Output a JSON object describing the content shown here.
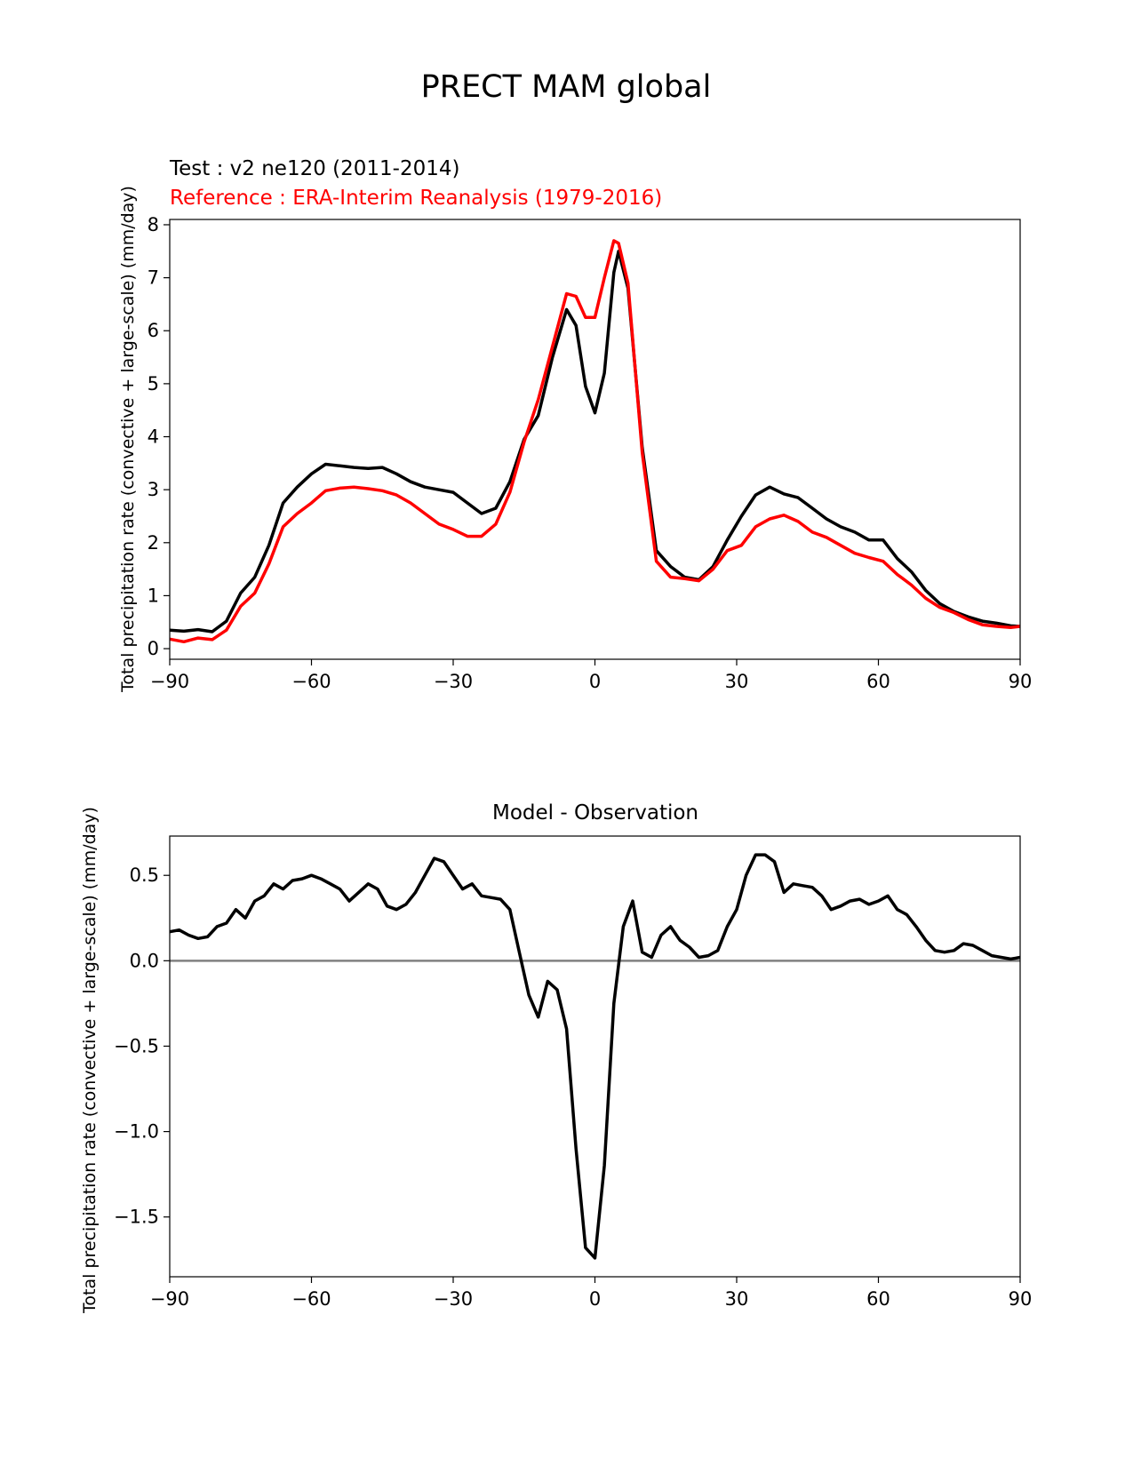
{
  "figure": {
    "title": "PRECT MAM global"
  },
  "chart_data": [
    {
      "type": "line",
      "test_label": "Test : v2 ne120 (2011-2014)",
      "reference_label": "Reference : ERA-Interim Reanalysis (1979-2016)",
      "xlabel": "",
      "ylabel": "Total precipitation rate (convective + large-scale) (mm/day)",
      "xlim": [
        -90,
        90
      ],
      "ylim": [
        -0.2,
        8.1
      ],
      "xticks": [
        -90,
        -60,
        -30,
        0,
        30,
        60,
        90
      ],
      "xtick_labels": [
        "−90",
        "−60",
        "−30",
        "0",
        "30",
        "60",
        "90"
      ],
      "yticks": [
        0,
        1,
        2,
        3,
        4,
        5,
        6,
        7,
        8
      ],
      "ytick_labels": [
        "0",
        "1",
        "2",
        "3",
        "4",
        "5",
        "6",
        "7",
        "8"
      ],
      "colors": {
        "test": "#000000",
        "reference": "#ff0000"
      },
      "series": [
        {
          "name": "Test",
          "x": [
            -90,
            -87,
            -84,
            -81,
            -78,
            -75,
            -72,
            -69,
            -66,
            -63,
            -60,
            -57,
            -54,
            -51,
            -48,
            -45,
            -42,
            -39,
            -36,
            -33,
            -30,
            -27,
            -24,
            -21,
            -18,
            -15,
            -12,
            -9,
            -6,
            -4,
            -2,
            0,
            2,
            4,
            5,
            7,
            10,
            13,
            16,
            19,
            22,
            25,
            28,
            31,
            34,
            37,
            40,
            43,
            46,
            49,
            52,
            55,
            58,
            61,
            64,
            67,
            70,
            73,
            76,
            79,
            82,
            85,
            88,
            90
          ],
          "values": [
            0.35,
            0.33,
            0.36,
            0.32,
            0.52,
            1.05,
            1.35,
            1.95,
            2.75,
            3.05,
            3.3,
            3.48,
            3.45,
            3.42,
            3.4,
            3.42,
            3.3,
            3.15,
            3.05,
            3.0,
            2.95,
            2.75,
            2.55,
            2.65,
            3.15,
            3.95,
            4.4,
            5.5,
            6.4,
            6.1,
            4.95,
            4.45,
            5.2,
            7.1,
            7.5,
            6.8,
            3.8,
            1.85,
            1.55,
            1.35,
            1.3,
            1.55,
            2.05,
            2.5,
            2.9,
            3.05,
            2.92,
            2.85,
            2.65,
            2.45,
            2.3,
            2.2,
            2.05,
            2.05,
            1.7,
            1.45,
            1.1,
            0.85,
            0.7,
            0.6,
            0.52,
            0.48,
            0.43,
            0.42
          ]
        },
        {
          "name": "Reference",
          "x": [
            -90,
            -87,
            -84,
            -81,
            -78,
            -75,
            -72,
            -69,
            -66,
            -63,
            -60,
            -57,
            -54,
            -51,
            -48,
            -45,
            -42,
            -39,
            -36,
            -33,
            -30,
            -27,
            -24,
            -21,
            -18,
            -15,
            -12,
            -9,
            -6,
            -4,
            -2,
            0,
            2,
            4,
            5,
            7,
            10,
            13,
            16,
            19,
            22,
            25,
            28,
            31,
            34,
            37,
            40,
            43,
            46,
            49,
            52,
            55,
            58,
            61,
            64,
            67,
            70,
            73,
            76,
            79,
            82,
            85,
            88,
            90
          ],
          "values": [
            0.18,
            0.13,
            0.2,
            0.17,
            0.35,
            0.8,
            1.05,
            1.6,
            2.3,
            2.55,
            2.75,
            2.98,
            3.03,
            3.05,
            3.02,
            2.98,
            2.9,
            2.75,
            2.55,
            2.35,
            2.25,
            2.12,
            2.12,
            2.35,
            2.95,
            3.9,
            4.7,
            5.7,
            6.7,
            6.65,
            6.25,
            6.25,
            7.0,
            7.7,
            7.65,
            6.9,
            3.7,
            1.65,
            1.35,
            1.32,
            1.28,
            1.5,
            1.85,
            1.95,
            2.3,
            2.45,
            2.52,
            2.4,
            2.2,
            2.1,
            1.95,
            1.8,
            1.72,
            1.65,
            1.4,
            1.2,
            0.95,
            0.78,
            0.68,
            0.55,
            0.45,
            0.42,
            0.4,
            0.42
          ]
        }
      ]
    },
    {
      "type": "line",
      "title": "Model - Observation",
      "xlabel": "",
      "ylabel": "Total precipitation rate (convective + large-scale) (mm/day)",
      "xlim": [
        -90,
        90
      ],
      "ylim": [
        -1.85,
        0.73
      ],
      "xticks": [
        -90,
        -60,
        -30,
        0,
        30,
        60,
        90
      ],
      "xtick_labels": [
        "−90",
        "−60",
        "−30",
        "0",
        "30",
        "60",
        "90"
      ],
      "yticks": [
        -1.5,
        -1.0,
        -0.5,
        0.0,
        0.5
      ],
      "ytick_labels": [
        "−1.5",
        "−1.0",
        "−0.5",
        "0.0",
        "0.5"
      ],
      "zero_line": 0,
      "colors": {
        "difference": "#000000",
        "zero_line": "#808080"
      },
      "series": [
        {
          "name": "Model - Observation",
          "x": [
            -90,
            -88,
            -86,
            -84,
            -82,
            -80,
            -78,
            -76,
            -74,
            -72,
            -70,
            -68,
            -66,
            -64,
            -62,
            -60,
            -58,
            -56,
            -54,
            -52,
            -50,
            -48,
            -46,
            -44,
            -42,
            -40,
            -38,
            -36,
            -34,
            -32,
            -30,
            -28,
            -26,
            -24,
            -22,
            -20,
            -18,
            -16,
            -14,
            -12,
            -10,
            -8,
            -6,
            -4,
            -2,
            0,
            2,
            4,
            6,
            8,
            10,
            12,
            14,
            16,
            18,
            20,
            22,
            24,
            26,
            28,
            30,
            32,
            34,
            36,
            38,
            40,
            42,
            44,
            46,
            48,
            50,
            52,
            54,
            56,
            58,
            60,
            62,
            64,
            66,
            68,
            70,
            72,
            74,
            76,
            78,
            80,
            82,
            84,
            86,
            88,
            90
          ],
          "values": [
            0.17,
            0.18,
            0.15,
            0.13,
            0.14,
            0.2,
            0.22,
            0.3,
            0.25,
            0.35,
            0.38,
            0.45,
            0.42,
            0.47,
            0.48,
            0.5,
            0.48,
            0.45,
            0.42,
            0.35,
            0.4,
            0.45,
            0.42,
            0.32,
            0.3,
            0.33,
            0.4,
            0.5,
            0.6,
            0.58,
            0.5,
            0.42,
            0.45,
            0.38,
            0.37,
            0.36,
            0.3,
            0.05,
            -0.2,
            -0.33,
            -0.12,
            -0.17,
            -0.4,
            -1.1,
            -1.68,
            -1.74,
            -1.2,
            -0.25,
            0.2,
            0.35,
            0.05,
            0.02,
            0.15,
            0.2,
            0.12,
            0.08,
            0.02,
            0.03,
            0.06,
            0.2,
            0.3,
            0.5,
            0.62,
            0.62,
            0.58,
            0.4,
            0.45,
            0.44,
            0.43,
            0.38,
            0.3,
            0.32,
            0.35,
            0.36,
            0.33,
            0.35,
            0.38,
            0.3,
            0.27,
            0.2,
            0.12,
            0.06,
            0.05,
            0.06,
            0.1,
            0.09,
            0.06,
            0.03,
            0.02,
            0.01,
            0.02
          ]
        }
      ]
    }
  ]
}
